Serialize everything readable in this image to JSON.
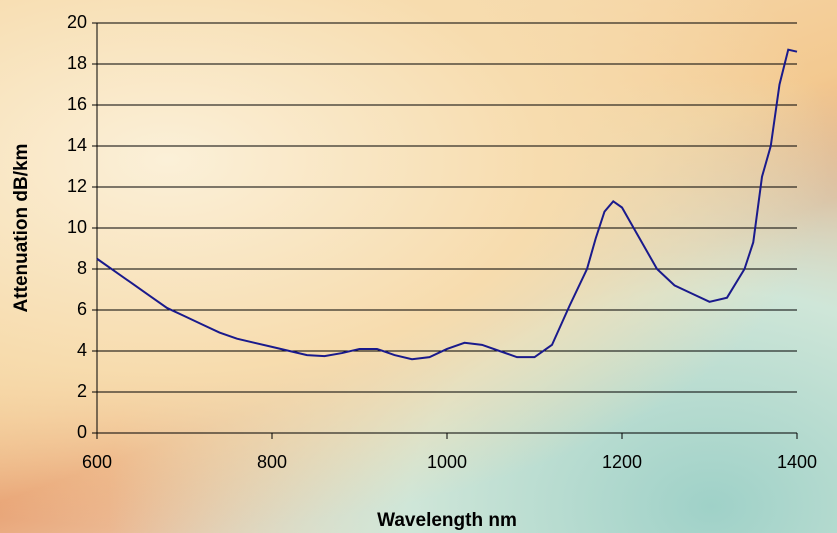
{
  "chart_data": {
    "type": "line",
    "x_label": "Wavelength nm",
    "y_label": "Attenuation dB/km",
    "x": [
      600,
      620,
      640,
      660,
      680,
      700,
      720,
      740,
      760,
      780,
      800,
      820,
      840,
      860,
      880,
      900,
      920,
      940,
      960,
      980,
      1000,
      1020,
      1040,
      1060,
      1080,
      1100,
      1120,
      1140,
      1160,
      1170,
      1180,
      1190,
      1200,
      1220,
      1240,
      1260,
      1280,
      1300,
      1320,
      1340,
      1350,
      1360,
      1370,
      1380,
      1390,
      1400
    ],
    "series": [
      {
        "color": "#1a1a8c",
        "values": [
          8.5,
          7.9,
          7.3,
          6.7,
          6.1,
          5.7,
          5.3,
          4.9,
          4.6,
          4.4,
          4.2,
          4.0,
          3.8,
          3.75,
          3.9,
          4.1,
          4.1,
          3.8,
          3.6,
          3.7,
          4.1,
          4.4,
          4.3,
          4.0,
          3.7,
          3.7,
          4.3,
          6.2,
          8.0,
          9.5,
          10.8,
          11.3,
          11.0,
          9.5,
          8.0,
          7.2,
          6.8,
          6.4,
          6.6,
          8.0,
          9.3,
          12.5,
          14,
          17,
          18.7,
          18.6
        ]
      }
    ],
    "xlim": [
      600,
      1400
    ],
    "xticks": [
      600,
      800,
      1000,
      1200,
      1400
    ],
    "ylim": [
      0,
      20
    ],
    "yticks": [
      0,
      2,
      4,
      6,
      8,
      10,
      12,
      14,
      16,
      18,
      20
    ],
    "grid": true
  }
}
